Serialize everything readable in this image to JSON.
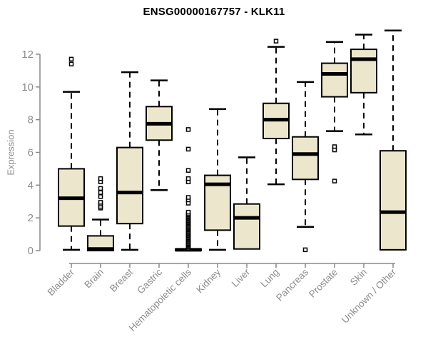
{
  "page": {
    "title": "ENSG00000167757 - KLK11"
  },
  "chart_data": {
    "type": "boxplot",
    "title": "ENSG00000167757 - KLK11",
    "xlabel": "",
    "ylabel": "Expression",
    "yticks": [
      0,
      2,
      4,
      6,
      8,
      10,
      12
    ],
    "ylim": [
      0,
      13.6
    ],
    "grid": false,
    "legend": "none",
    "categories": [
      "Bladder",
      "Brain",
      "Breast",
      "Gastric",
      "Hematopoietic cells",
      "Kidney",
      "Liver",
      "Lung",
      "Pancreas",
      "Prostate",
      "Skin",
      "Unknown / Other"
    ],
    "boxes": [
      {
        "category": "Bladder",
        "min": 0.05,
        "q1": 1.5,
        "median": 3.2,
        "q3": 5.0,
        "max": 9.7,
        "outliers": [
          11.4,
          11.7
        ]
      },
      {
        "category": "Brain",
        "min": 0,
        "q1": 0,
        "median": 0.1,
        "q3": 0.9,
        "max": 1.9,
        "outliers": [
          2.6,
          2.7,
          2.85,
          2.95,
          3.3,
          3.55,
          3.8,
          4.2,
          4.4
        ]
      },
      {
        "category": "Breast",
        "min": 0.05,
        "q1": 1.65,
        "median": 3.55,
        "q3": 6.3,
        "max": 10.9,
        "outliers": []
      },
      {
        "category": "Gastric",
        "min": 3.7,
        "q1": 6.75,
        "median": 7.75,
        "q3": 8.8,
        "max": 10.4,
        "outliers": []
      },
      {
        "category": "Hematopoietic cells",
        "min": 0,
        "q1": 0,
        "median": 0.05,
        "q3": 0.1,
        "max": 0.1,
        "outliers": [
          0.15,
          0.22,
          0.29,
          0.36,
          0.43,
          0.5,
          0.57,
          0.64,
          0.71,
          0.78,
          0.85,
          0.92,
          0.99,
          1.06,
          1.13,
          1.2,
          1.27,
          1.34,
          1.41,
          1.48,
          1.55,
          1.62,
          1.69,
          1.76,
          1.83,
          1.9,
          1.97,
          2.04,
          2.11,
          2.18,
          2.25,
          2.35,
          2.9,
          3.1,
          3.25,
          4.2,
          4.4,
          4.9,
          6.2,
          7.4
        ]
      },
      {
        "category": "Kidney",
        "min": 0.05,
        "q1": 1.25,
        "median": 4.05,
        "q3": 4.6,
        "max": 8.65,
        "outliers": []
      },
      {
        "category": "Liver",
        "min": 0.1,
        "q1": 0.1,
        "median": 2.0,
        "q3": 2.85,
        "max": 5.7,
        "outliers": []
      },
      {
        "category": "Lung",
        "min": 4.05,
        "q1": 6.85,
        "median": 8.0,
        "q3": 9.0,
        "max": 12.45,
        "outliers": [
          12.8
        ]
      },
      {
        "category": "Pancreas",
        "min": 1.45,
        "q1": 4.35,
        "median": 5.9,
        "q3": 6.95,
        "max": 10.3,
        "outliers": [
          0.05
        ]
      },
      {
        "category": "Prostate",
        "min": 7.3,
        "q1": 9.4,
        "median": 10.8,
        "q3": 11.45,
        "max": 12.75,
        "outliers": [
          6.35,
          6.15,
          4.25
        ]
      },
      {
        "category": "Skin",
        "min": 7.1,
        "q1": 9.65,
        "median": 11.7,
        "q3": 12.3,
        "max": 13.2,
        "outliers": []
      },
      {
        "category": "Unknown / Other",
        "min": 0.05,
        "q1": 0.05,
        "median": 2.35,
        "q3": 6.1,
        "max": 13.45,
        "outliers": []
      }
    ],
    "colors": {
      "box_fill": "#ece6cc",
      "box_border": "#000000",
      "median": "#000000",
      "whisker": "#000000",
      "outlier_border": "#000000",
      "outlier_fill": "#ffffff",
      "axis": "#898989",
      "axis_text": "#8c8c8c",
      "title_text": "#000000",
      "background": "#ffffff"
    }
  }
}
